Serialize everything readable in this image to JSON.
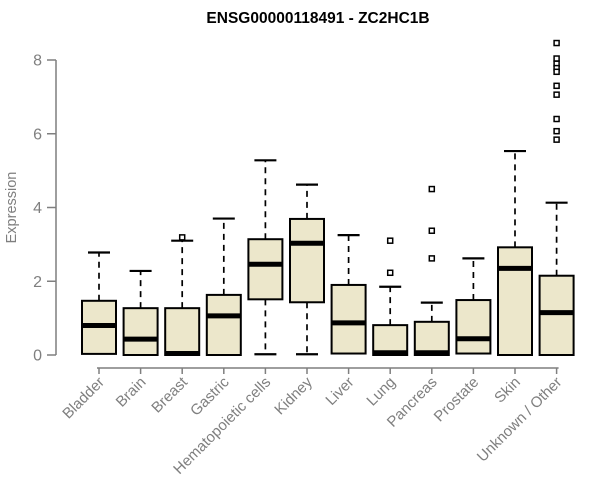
{
  "chart_data": {
    "type": "boxplot",
    "title": "ENSG00000118491 - ZC2HC1B",
    "ylabel": "Expression",
    "xlabel": "",
    "ylim": [
      0,
      8
    ],
    "yticks": [
      0,
      2,
      4,
      6,
      8
    ],
    "grid": false,
    "legend": "none",
    "categories": [
      "Bladder",
      "Brain",
      "Breast",
      "Gastric",
      "Hematopoietic cells",
      "Kidney",
      "Liver",
      "Lung",
      "Pancreas",
      "Prostate",
      "Skin",
      "Unknown / Other"
    ],
    "series": [
      {
        "name": "Bladder",
        "q1": 0.03,
        "median": 0.8,
        "q3": 1.47,
        "whisker_low": 0.03,
        "whisker_high": 2.78,
        "outliers": []
      },
      {
        "name": "Brain",
        "q1": 0.0,
        "median": 0.43,
        "q3": 1.27,
        "whisker_low": 0.0,
        "whisker_high": 2.28,
        "outliers": []
      },
      {
        "name": "Breast",
        "q1": 0.0,
        "median": 0.04,
        "q3": 1.27,
        "whisker_low": 0.0,
        "whisker_high": 3.1,
        "outliers": [
          3.19
        ]
      },
      {
        "name": "Gastric",
        "q1": 0.0,
        "median": 1.06,
        "q3": 1.63,
        "whisker_low": 0.0,
        "whisker_high": 3.7,
        "outliers": []
      },
      {
        "name": "Hematopoietic cells",
        "q1": 1.51,
        "median": 2.46,
        "q3": 3.14,
        "whisker_low": 0.02,
        "whisker_high": 5.28,
        "outliers": []
      },
      {
        "name": "Kidney",
        "q1": 1.43,
        "median": 3.03,
        "q3": 3.69,
        "whisker_low": 0.02,
        "whisker_high": 4.62,
        "outliers": []
      },
      {
        "name": "Liver",
        "q1": 0.04,
        "median": 0.87,
        "q3": 1.9,
        "whisker_low": 0.04,
        "whisker_high": 3.25,
        "outliers": []
      },
      {
        "name": "Lung",
        "q1": 0.0,
        "median": 0.06,
        "q3": 0.81,
        "whisker_low": 0.0,
        "whisker_high": 1.85,
        "outliers": [
          3.1,
          2.23
        ]
      },
      {
        "name": "Pancreas",
        "q1": 0.0,
        "median": 0.06,
        "q3": 0.9,
        "whisker_low": 0.0,
        "whisker_high": 1.42,
        "outliers": [
          4.5,
          3.37,
          2.62
        ]
      },
      {
        "name": "Prostate",
        "q1": 0.04,
        "median": 0.44,
        "q3": 1.49,
        "whisker_low": 0.04,
        "whisker_high": 2.62,
        "outliers": []
      },
      {
        "name": "Skin",
        "q1": 0.0,
        "median": 2.35,
        "q3": 2.92,
        "whisker_low": 0.0,
        "whisker_high": 5.53,
        "outliers": []
      },
      {
        "name": "Unknown / Other",
        "q1": 0.0,
        "median": 1.15,
        "q3": 2.15,
        "whisker_low": 0.0,
        "whisker_high": 4.13,
        "outliers": [
          8.46,
          8.04,
          7.9,
          7.78,
          7.68,
          7.3,
          7.06,
          6.4,
          6.07,
          5.84
        ]
      }
    ],
    "colors": {
      "box_fill": "#ECE7CB",
      "box_stroke": "#000000",
      "median": "#000000",
      "whisker": "#000000",
      "outlier_stroke": "#000000",
      "outlier_fill": "#ffffff",
      "axis": "#7F7F7F",
      "tick_text": "#7F7F7F",
      "title_text": "#000000",
      "background": "#FFFFFF"
    }
  }
}
